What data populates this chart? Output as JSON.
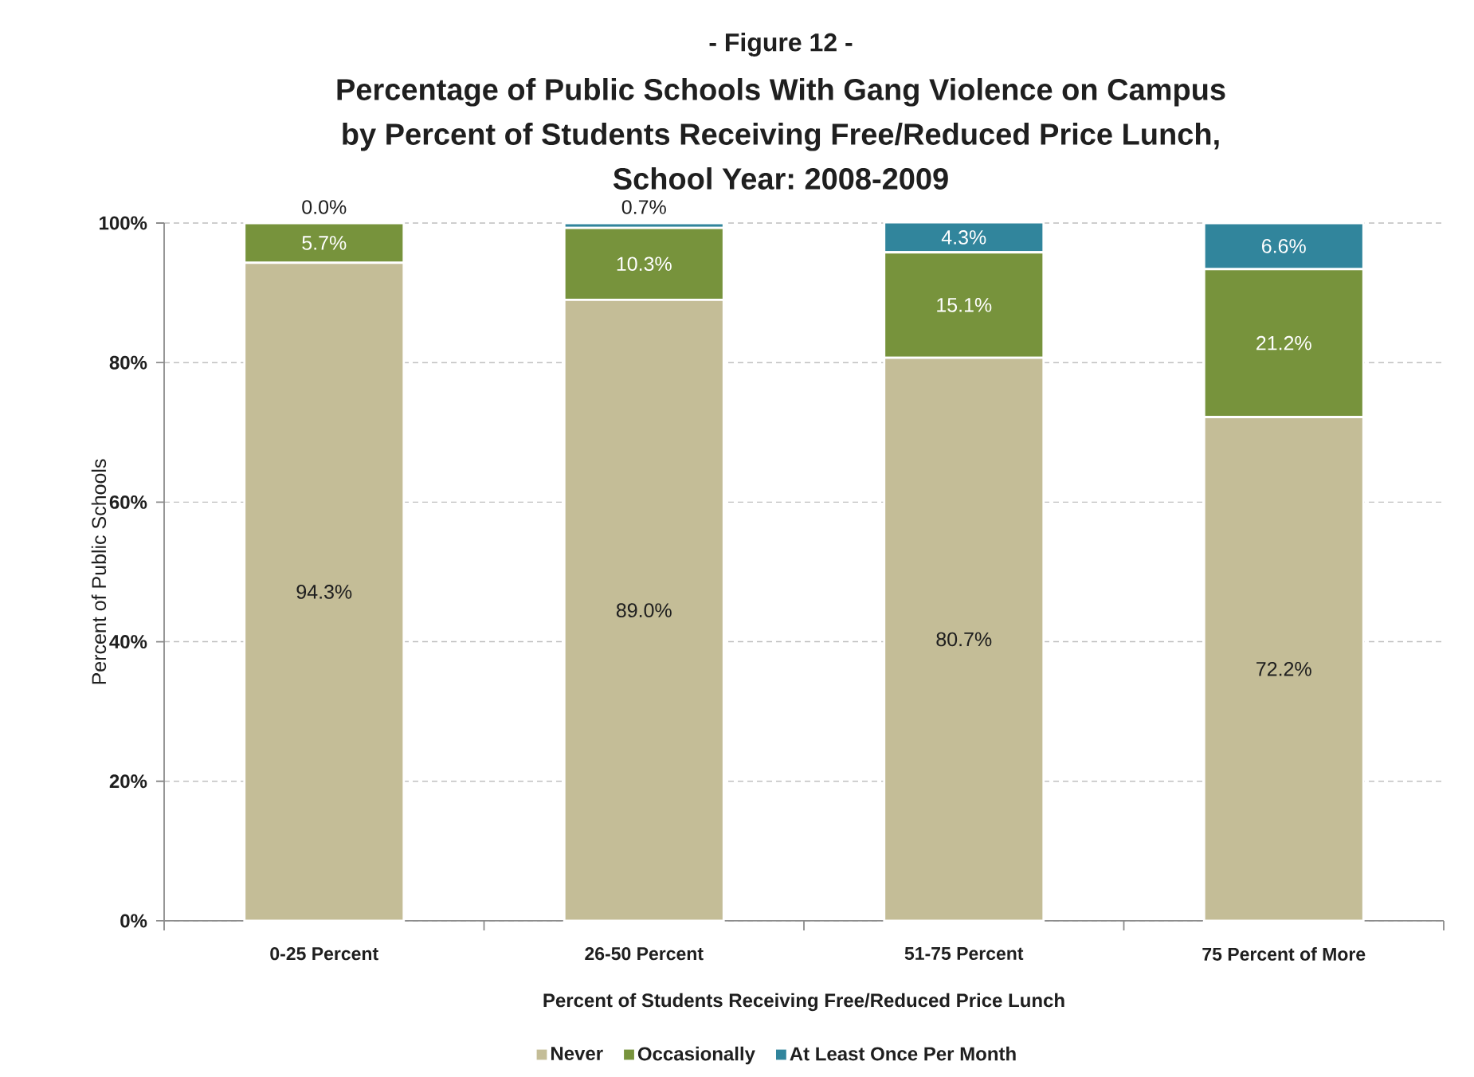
{
  "chart_data": {
    "type": "bar",
    "stacked": true,
    "title": "Percentage of Public Schools With Gang Violence on Campus by Percent of Students Receiving Free/Reduced Price Lunch, School Year: 2008-2009",
    "annotations": [
      "- Figure 12 -"
    ],
    "xlabel": "Percent of Students Receiving Free/Reduced Price Lunch",
    "ylabel": "Percent of Public Schools",
    "categories": [
      "0-25 Percent",
      "26-50 Percent",
      "51-75 Percent",
      "75 Percent of More"
    ],
    "series": [
      {
        "name": "Never",
        "color": "#c4bd97",
        "values": [
          94.3,
          89.0,
          80.7,
          72.2
        ],
        "value_labels": [
          "94.3%",
          "89.0%",
          "80.7%",
          "72.2%"
        ]
      },
      {
        "name": "Occasionally",
        "color": "#77933c",
        "values": [
          5.7,
          10.3,
          15.1,
          21.2
        ],
        "value_labels": [
          "5.7%",
          "10.3%",
          "15.1%",
          "21.2%"
        ]
      },
      {
        "name": "At Least Once Per Month",
        "color": "#31859c",
        "values": [
          0.0,
          0.7,
          4.3,
          6.6
        ],
        "value_labels": [
          "0.0%",
          "0.7%",
          "4.3%",
          "6.6%"
        ]
      }
    ],
    "ylim": [
      0,
      100
    ],
    "yticks": [
      {
        "value": 0,
        "label": "0%"
      },
      {
        "value": 20,
        "label": "20%"
      },
      {
        "value": 40,
        "label": "40%"
      },
      {
        "value": 60,
        "label": "60%"
      },
      {
        "value": 80,
        "label": "80%"
      },
      {
        "value": 100,
        "label": "100%"
      }
    ],
    "grid": "y",
    "legend": "bottom"
  }
}
